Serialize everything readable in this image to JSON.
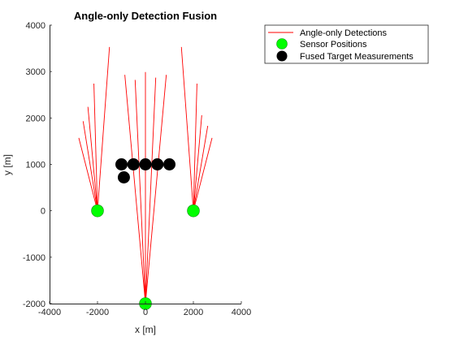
{
  "chart_data": {
    "type": "scatter",
    "title": "Angle-only Detection Fusion",
    "xlabel": "x [m]",
    "ylabel": "y [m]",
    "xlim": [
      -4000,
      4000
    ],
    "ylim": [
      -2000,
      4000
    ],
    "xticks": [
      -4000,
      -2000,
      0,
      2000,
      4000
    ],
    "yticks": [
      -2000,
      -1000,
      0,
      1000,
      2000,
      3000,
      4000
    ],
    "grid": false,
    "legend_position": "outside-top-right",
    "legend": [
      "Angle-only Detections",
      "Sensor Positions",
      "Fused Target Measurements"
    ],
    "colors": {
      "detections": "#ff0000",
      "sensors": "#00ff00",
      "sensor_edge": "#1a8a1a",
      "fused": "#000000",
      "axis": "#262626"
    },
    "sensors": [
      {
        "x": -2000,
        "y": 0
      },
      {
        "x": 2000,
        "y": 0
      },
      {
        "x": 0,
        "y": -2000
      }
    ],
    "fused_targets": [
      {
        "x": -1000,
        "y": 1000
      },
      {
        "x": -500,
        "y": 1000
      },
      {
        "x": 0,
        "y": 1000
      },
      {
        "x": 500,
        "y": 1000
      },
      {
        "x": 1000,
        "y": 1000
      },
      {
        "x": -900,
        "y": 720
      }
    ],
    "detection_endpoints": [
      [
        {
          "x": -2780,
          "y": 1570
        },
        {
          "x": -2600,
          "y": 1930
        },
        {
          "x": -2400,
          "y": 2240
        },
        {
          "x": -2150,
          "y": 2740
        },
        {
          "x": -1500,
          "y": 3530
        }
      ],
      [
        {
          "x": 2780,
          "y": 1570
        },
        {
          "x": 2600,
          "y": 1830
        },
        {
          "x": 2350,
          "y": 2060
        },
        {
          "x": 2150,
          "y": 2740
        },
        {
          "x": 1500,
          "y": 3530
        }
      ],
      [
        {
          "x": -860,
          "y": 2930
        },
        {
          "x": -430,
          "y": 2820
        },
        {
          "x": 0,
          "y": 2990
        },
        {
          "x": 430,
          "y": 2870
        },
        {
          "x": 870,
          "y": 2930
        }
      ]
    ]
  }
}
